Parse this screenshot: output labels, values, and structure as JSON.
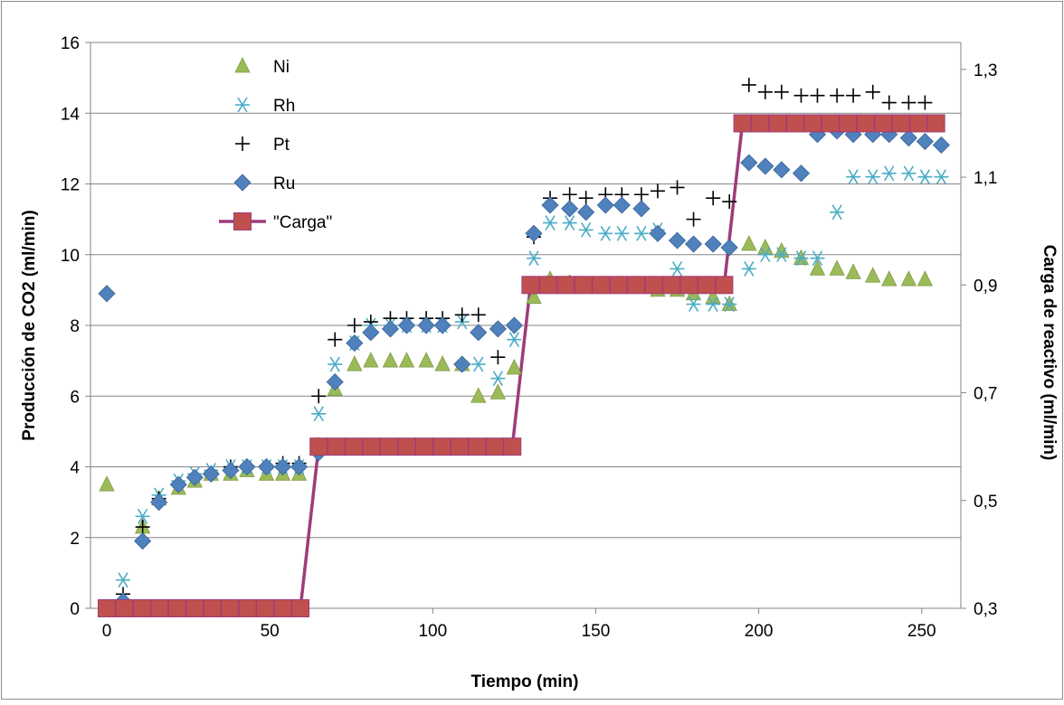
{
  "chart_data": {
    "type": "scatter",
    "title": "",
    "xlabel": "Tiempo (min)",
    "ylabel": "Producción de CO2 (ml/min)",
    "y2label": "Carga de reactivo (ml/min)",
    "xlim": [
      -5,
      262
    ],
    "ylim": [
      0,
      16
    ],
    "y2lim": [
      0.3,
      1.35
    ],
    "x_ticks": [
      "0",
      "50",
      "100",
      "150",
      "200",
      "250"
    ],
    "x_tick_values": [
      0,
      50,
      100,
      150,
      200,
      250
    ],
    "y_ticks": [
      "0",
      "2",
      "4",
      "6",
      "8",
      "10",
      "12",
      "14",
      "16"
    ],
    "y_tick_values": [
      0,
      2,
      4,
      6,
      8,
      10,
      12,
      14,
      16
    ],
    "y2_ticks": [
      "0,3",
      "0,5",
      "0,7",
      "0,9",
      "1,1",
      "1,3"
    ],
    "y2_tick_values": [
      0.3,
      0.5,
      0.7,
      0.9,
      1.1,
      1.3
    ],
    "grid": "horizontal",
    "legend_position": "top-left",
    "series": [
      {
        "name": "Ni",
        "marker": "triangle",
        "color": "#9BBB59",
        "axis": "left",
        "x": [
          0,
          5,
          11,
          16,
          22,
          27,
          32,
          38,
          43,
          49,
          54,
          59,
          65,
          70,
          76,
          81,
          87,
          92,
          98,
          103,
          109,
          114,
          120,
          125,
          131,
          136,
          142,
          147,
          153,
          158,
          164,
          169,
          175,
          180,
          186,
          191,
          197,
          202,
          207,
          213,
          218,
          224,
          229,
          235,
          240,
          246,
          251
        ],
        "y": [
          3.5,
          0.2,
          2.3,
          3.1,
          3.4,
          3.6,
          3.8,
          3.8,
          3.9,
          3.8,
          3.8,
          3.8,
          4.6,
          6.2,
          6.9,
          7.0,
          7.0,
          7.0,
          7.0,
          6.9,
          6.9,
          6.0,
          6.1,
          6.8,
          8.8,
          9.3,
          9.2,
          9.1,
          9.1,
          9.1,
          9.1,
          9.0,
          9.0,
          8.9,
          8.8,
          8.6,
          10.3,
          10.2,
          10.1,
          9.9,
          9.6,
          9.6,
          9.5,
          9.4,
          9.3,
          9.3,
          9.3
        ]
      },
      {
        "name": "Rh",
        "marker": "asterisk",
        "color": "#4BACC6",
        "axis": "left",
        "x": [
          5,
          11,
          16,
          22,
          27,
          32,
          38,
          43,
          49,
          54,
          59,
          65,
          70,
          76,
          81,
          87,
          92,
          98,
          103,
          109,
          114,
          120,
          125,
          131,
          136,
          142,
          147,
          153,
          158,
          164,
          169,
          175,
          180,
          186,
          191,
          197,
          202,
          207,
          213,
          218,
          224,
          229,
          235,
          240,
          246,
          251,
          256
        ],
        "y": [
          0.8,
          2.6,
          3.2,
          3.6,
          3.8,
          3.9,
          4.0,
          4.0,
          4.0,
          4.0,
          4.0,
          5.5,
          6.9,
          7.5,
          8.0,
          8.0,
          8.0,
          8.0,
          8.0,
          8.1,
          6.9,
          6.5,
          7.6,
          9.9,
          10.9,
          10.9,
          10.7,
          10.6,
          10.6,
          10.6,
          10.7,
          9.6,
          8.6,
          8.6,
          8.6,
          9.6,
          10.0,
          10.0,
          9.9,
          9.9,
          11.2,
          12.2,
          12.2,
          12.3,
          12.3,
          12.2,
          12.2
        ]
      },
      {
        "name": "Pt",
        "marker": "plus",
        "color": "#000000",
        "axis": "left",
        "x": [
          5,
          11,
          16,
          22,
          27,
          32,
          38,
          43,
          49,
          54,
          59,
          65,
          70,
          76,
          81,
          87,
          92,
          98,
          103,
          109,
          114,
          120,
          125,
          131,
          136,
          142,
          147,
          153,
          158,
          164,
          169,
          175,
          180,
          186,
          191,
          197,
          202,
          207,
          213,
          218,
          224,
          229,
          235,
          240,
          246,
          251
        ],
        "y": [
          0.4,
          2.3,
          3.1,
          3.5,
          3.7,
          3.8,
          4.0,
          4.0,
          4.0,
          4.1,
          4.1,
          6.0,
          7.6,
          8.0,
          8.1,
          8.2,
          8.2,
          8.2,
          8.2,
          8.3,
          8.3,
          7.1,
          8.0,
          10.5,
          11.6,
          11.7,
          11.6,
          11.7,
          11.7,
          11.7,
          11.8,
          11.9,
          11.0,
          11.6,
          11.5,
          14.8,
          14.6,
          14.6,
          14.5,
          14.5,
          14.5,
          14.5,
          14.6,
          14.3,
          14.3,
          14.3
        ]
      },
      {
        "name": "Ru",
        "marker": "diamond",
        "color": "#4F81BD",
        "axis": "left",
        "x": [
          0,
          5,
          11,
          16,
          22,
          27,
          32,
          38,
          43,
          49,
          54,
          59,
          65,
          70,
          76,
          81,
          87,
          92,
          98,
          103,
          109,
          114,
          120,
          125,
          131,
          136,
          142,
          147,
          153,
          158,
          164,
          169,
          175,
          180,
          186,
          191,
          197,
          202,
          207,
          213,
          218,
          224,
          229,
          235,
          240,
          246,
          251,
          256
        ],
        "y": [
          8.9,
          0.2,
          1.9,
          3.0,
          3.5,
          3.7,
          3.8,
          3.9,
          4.0,
          4.0,
          4.0,
          4.0,
          4.4,
          6.4,
          7.5,
          7.8,
          7.9,
          8.0,
          8.0,
          8.0,
          6.9,
          7.8,
          7.9,
          8.0,
          10.6,
          11.4,
          11.3,
          11.2,
          11.4,
          11.4,
          11.3,
          10.6,
          10.4,
          10.3,
          10.3,
          10.2,
          12.6,
          12.5,
          12.4,
          12.3,
          13.4,
          13.5,
          13.4,
          13.4,
          13.4,
          13.3,
          13.2,
          13.1
        ]
      },
      {
        "name": "\"Carga\"",
        "marker": "square",
        "color": "#C0504D",
        "line_color": "#9E3C7A",
        "axis": "right",
        "x": [
          0,
          5.4,
          10.8,
          16.2,
          21.6,
          27,
          32.4,
          37.8,
          43.2,
          48.6,
          54,
          59.4,
          65,
          70.4,
          75.8,
          81.2,
          86.6,
          92,
          97.4,
          102.8,
          108.2,
          113.6,
          119,
          124.4,
          130,
          135.4,
          140.8,
          146.2,
          151.6,
          157,
          162.4,
          167.8,
          173.2,
          178.6,
          184,
          189.4,
          195,
          200.4,
          205.8,
          211.2,
          216.6,
          222,
          227.4,
          232.8,
          238.2,
          243.6,
          249,
          254.4
        ],
        "y": [
          0.3,
          0.3,
          0.3,
          0.3,
          0.3,
          0.3,
          0.3,
          0.3,
          0.3,
          0.3,
          0.3,
          0.3,
          0.6,
          0.6,
          0.6,
          0.6,
          0.6,
          0.6,
          0.6,
          0.6,
          0.6,
          0.6,
          0.6,
          0.6,
          0.9,
          0.9,
          0.9,
          0.9,
          0.9,
          0.9,
          0.9,
          0.9,
          0.9,
          0.9,
          0.9,
          0.9,
          1.2,
          1.2,
          1.2,
          1.2,
          1.2,
          1.2,
          1.2,
          1.2,
          1.2,
          1.2,
          1.2,
          1.2
        ]
      }
    ]
  }
}
